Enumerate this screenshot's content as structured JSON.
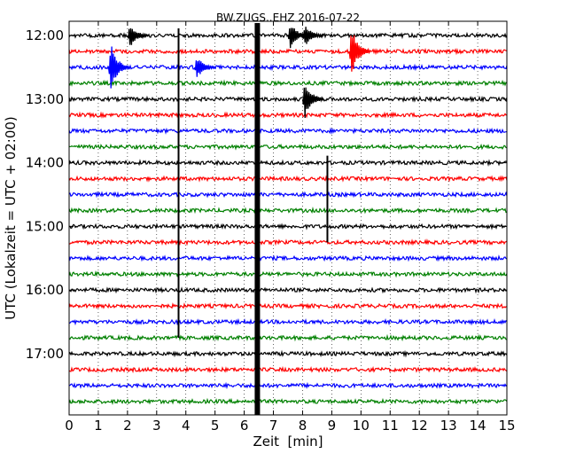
{
  "chart_data": {
    "type": "line",
    "title": "BW.ZUGS..EHZ 2016-07-22",
    "xlabel": "Zeit  [min]",
    "ylabel": "UTC (Lokalzeit = UTC + 02:00)",
    "xlim": [
      0,
      15
    ],
    "x_ticks": [
      "0",
      "1",
      "2",
      "3",
      "4",
      "5",
      "6",
      "7",
      "8",
      "9",
      "10",
      "11",
      "12",
      "13",
      "14",
      "15"
    ],
    "y_tick_labels": [
      "12:00",
      "13:00",
      "14:00",
      "15:00",
      "16:00",
      "17:00"
    ],
    "grid": "x-dotted",
    "trace_interval_min": 15,
    "first_trace": "12:00",
    "trace_count": 24,
    "colors": [
      "#000000",
      "#ff0000",
      "#0000ff",
      "#008000"
    ],
    "events": [
      {
        "name": "Gerätestörung",
        "start_trace": "12:00",
        "end_trace": "18:00",
        "minute": 6.45,
        "type": "gap"
      },
      {
        "name": "Spike",
        "start_trace": "12:00",
        "end_trace": "16:45",
        "minute": 3.75,
        "type": "spike"
      },
      {
        "name": "Spike",
        "start_trace": "14:00",
        "end_trace": "15:15",
        "minute": 8.85,
        "type": "spike"
      },
      {
        "name": "Ereignis",
        "trace": "12:00",
        "minute": 7.5,
        "amplitude": 1.4
      },
      {
        "name": "Ereignis",
        "trace": "12:00",
        "minute": 8.0,
        "amplitude": 1.2
      },
      {
        "name": "Ereignis",
        "trace": "12:00",
        "minute": 2.0,
        "amplitude": 1.3
      },
      {
        "name": "Ereignis",
        "trace": "12:15",
        "minute": 9.6,
        "amplitude": 2.5
      },
      {
        "name": "Ereignis",
        "trace": "12:30",
        "minute": 1.35,
        "amplitude": 2.5
      },
      {
        "name": "Ereignis",
        "trace": "12:30",
        "minute": 4.3,
        "amplitude": 1.2
      },
      {
        "name": "Ereignis",
        "trace": "13:00",
        "minute": 8.0,
        "amplitude": 2.0
      }
    ]
  }
}
